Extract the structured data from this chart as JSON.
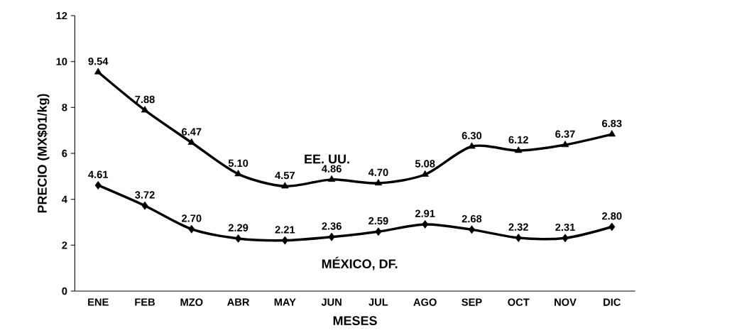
{
  "chart_data": {
    "type": "line",
    "xlabel": "MESES",
    "ylabel": "PRECIO (MX$01/kg)",
    "categories": [
      "ENE",
      "FEB",
      "MZO",
      "ABR",
      "MAY",
      "JUN",
      "JUL",
      "AGO",
      "SEP",
      "OCT",
      "NOV",
      "DIC"
    ],
    "series": [
      {
        "name": "EE. UU.",
        "color": "#000000",
        "marker": "triangle",
        "values": [
          9.54,
          7.88,
          6.47,
          5.1,
          4.57,
          4.86,
          4.7,
          5.08,
          6.3,
          6.12,
          6.37,
          6.83
        ],
        "value_labels": [
          "9.54",
          "7.88",
          "6.47",
          "5.10",
          "4.57",
          "4.86",
          "4.70",
          "5.08",
          "6.30",
          "6.12",
          "6.37",
          "6.83"
        ]
      },
      {
        "name": "MÉXICO, DF.",
        "color": "#000000",
        "marker": "diamond",
        "values": [
          4.61,
          3.72,
          2.7,
          2.29,
          2.21,
          2.36,
          2.59,
          2.91,
          2.68,
          2.32,
          2.31,
          2.8
        ],
        "value_labels": [
          "4.61",
          "3.72",
          "2.70",
          "2.29",
          "2.21",
          "2.36",
          "2.59",
          "2.91",
          "2.68",
          "2.32",
          "2.31",
          "2.80"
        ]
      }
    ],
    "ylim": [
      0,
      12
    ],
    "yticks": [
      0,
      2,
      4,
      6,
      8,
      10,
      12
    ],
    "grid": false,
    "legend": false,
    "line_style": "solid"
  }
}
